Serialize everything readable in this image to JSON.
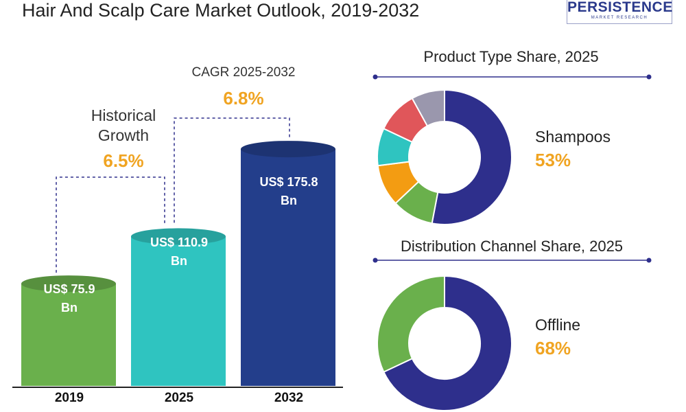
{
  "title": "Hair And Scalp Care Market Outlook, 2019-2032",
  "logo": {
    "main": "PERSISTENCE",
    "sub": "MARKET RESEARCH"
  },
  "colors": {
    "bar_2019": "#6ab04c",
    "bar_2025": "#2fc4c0",
    "bar_2032": "#233e8b",
    "accent": "#f0a422",
    "navy": "#2e2f8c",
    "green": "#6ab04c",
    "orange": "#f39c12",
    "teal": "#2fc4c0",
    "red": "#e0565a",
    "gray": "#9a97ad"
  },
  "annotations": {
    "historical_label_line1": "Historical",
    "historical_label_line2": "Growth",
    "historical_value": "6.5%",
    "cagr_label": "CAGR 2025-2032",
    "cagr_value": "6.8%"
  },
  "chart_data": [
    {
      "type": "bar",
      "title": "Hair And Scalp Care Market Outlook, 2019-2032",
      "categories": [
        "2019",
        "2025",
        "2032"
      ],
      "values": [
        75.9,
        110.9,
        175.8
      ],
      "value_labels": [
        "US$ 75.9 Bn",
        "US$ 110.9 Bn",
        "US$ 175.8 Bn"
      ],
      "value_label_lines": [
        [
          "US$ 75.9",
          "Bn"
        ],
        [
          "US$ 110.9",
          "Bn"
        ],
        [
          "US$ 175.8",
          "Bn"
        ]
      ],
      "unit": "US$ Bn"
    },
    {
      "type": "pie",
      "title": "Product Type Share, 2025",
      "highlight_label": "Shampoos",
      "highlight_value": "53%",
      "slices": [
        {
          "label": "Shampoos",
          "value": 53,
          "color": "#2e2f8c"
        },
        {
          "label": "",
          "value": 10,
          "color": "#6ab04c"
        },
        {
          "label": "",
          "value": 10,
          "color": "#f39c12"
        },
        {
          "label": "",
          "value": 9,
          "color": "#2fc4c0"
        },
        {
          "label": "",
          "value": 10,
          "color": "#e0565a"
        },
        {
          "label": "",
          "value": 8,
          "color": "#9a97ad"
        }
      ]
    },
    {
      "type": "pie",
      "title": "Distribution Channel Share, 2025",
      "highlight_label": "Offline",
      "highlight_value": "68%",
      "slices": [
        {
          "label": "Offline",
          "value": 68,
          "color": "#2e2f8c"
        },
        {
          "label": "",
          "value": 32,
          "color": "#6ab04c"
        }
      ]
    }
  ]
}
